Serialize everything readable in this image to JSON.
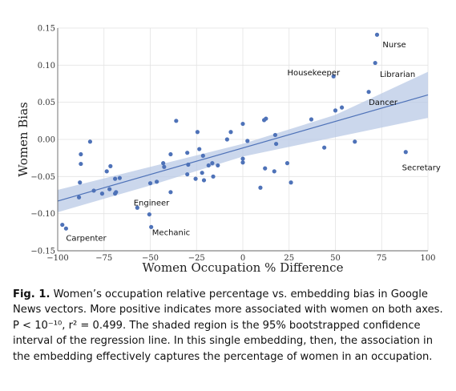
{
  "chart_data": {
    "type": "scatter",
    "xlabel": "Women Occupation % Difference",
    "ylabel": "Women Bias",
    "xlim": [
      -100,
      100
    ],
    "ylim": [
      -0.15,
      0.15
    ],
    "x_ticks": [
      -100,
      -75,
      -50,
      -25,
      0,
      25,
      50,
      75,
      100
    ],
    "x_tick_labels": [
      "−100",
      "−75",
      "−50",
      "−25",
      "0",
      "25",
      "50",
      "75",
      "100"
    ],
    "y_ticks": [
      -0.15,
      -0.1,
      -0.05,
      0.0,
      0.05,
      0.1,
      0.15
    ],
    "y_tick_labels": [
      "−0.15",
      "−0.10",
      "−0.05",
      "0.00",
      "0.05",
      "0.10",
      "0.15"
    ],
    "grid": true,
    "point_color": "#4e72b8",
    "band_color": "#b9c9e6",
    "line_color": "#4e72b8",
    "regression": {
      "x": [
        -100,
        100
      ],
      "y": [
        -0.083,
        0.06
      ]
    },
    "confidence_band": {
      "x": [
        -100,
        -50,
        0,
        50,
        100
      ],
      "upper": [
        -0.068,
        -0.037,
        -0.006,
        0.033,
        0.091
      ],
      "lower": [
        -0.098,
        -0.062,
        -0.023,
        0.003,
        0.029
      ]
    },
    "points": [
      {
        "x": 72.5,
        "y": 0.141
      },
      {
        "x": 71.5,
        "y": 0.103
      },
      {
        "x": 49.0,
        "y": 0.085
      },
      {
        "x": 68.0,
        "y": 0.064
      },
      {
        "x": 53.5,
        "y": 0.043
      },
      {
        "x": 50.0,
        "y": 0.039
      },
      {
        "x": 88.0,
        "y": -0.017
      },
      {
        "x": 60.5,
        "y": -0.003
      },
      {
        "x": 44.0,
        "y": -0.011
      },
      {
        "x": 37.0,
        "y": 0.027
      },
      {
        "x": 24.0,
        "y": -0.032
      },
      {
        "x": 26.0,
        "y": -0.058
      },
      {
        "x": 17.5,
        "y": 0.006
      },
      {
        "x": 18.0,
        "y": -0.006
      },
      {
        "x": 17.0,
        "y": -0.043
      },
      {
        "x": 11.5,
        "y": 0.026
      },
      {
        "x": 12.5,
        "y": 0.028
      },
      {
        "x": 12.0,
        "y": -0.039
      },
      {
        "x": 9.5,
        "y": -0.065
      },
      {
        "x": 2.5,
        "y": -0.002
      },
      {
        "x": 0.0,
        "y": 0.021
      },
      {
        "x": 0.0,
        "y": -0.026
      },
      {
        "x": 0.0,
        "y": -0.031
      },
      {
        "x": -6.5,
        "y": 0.01
      },
      {
        "x": -8.5,
        "y": 0.0
      },
      {
        "x": -13.5,
        "y": -0.035
      },
      {
        "x": -16.5,
        "y": -0.032
      },
      {
        "x": -16.0,
        "y": -0.05
      },
      {
        "x": -18.5,
        "y": -0.035
      },
      {
        "x": -21.5,
        "y": -0.022
      },
      {
        "x": -22.0,
        "y": -0.045
      },
      {
        "x": -21.0,
        "y": -0.055
      },
      {
        "x": -23.5,
        "y": -0.013
      },
      {
        "x": -24.5,
        "y": 0.01
      },
      {
        "x": -25.5,
        "y": -0.053
      },
      {
        "x": -29.5,
        "y": -0.034
      },
      {
        "x": -30.0,
        "y": -0.047
      },
      {
        "x": -30.0,
        "y": -0.018
      },
      {
        "x": -36.0,
        "y": 0.025
      },
      {
        "x": -39.0,
        "y": -0.02
      },
      {
        "x": -39.0,
        "y": -0.071
      },
      {
        "x": -42.5,
        "y": -0.037
      },
      {
        "x": -43.0,
        "y": -0.032
      },
      {
        "x": -46.5,
        "y": -0.057
      },
      {
        "x": -50.0,
        "y": -0.059
      },
      {
        "x": -50.5,
        "y": -0.101
      },
      {
        "x": -49.5,
        "y": -0.118
      },
      {
        "x": -57.0,
        "y": -0.092
      },
      {
        "x": -66.5,
        "y": -0.052
      },
      {
        "x": -69.0,
        "y": -0.053
      },
      {
        "x": -68.5,
        "y": -0.071
      },
      {
        "x": -69.0,
        "y": -0.073
      },
      {
        "x": -71.5,
        "y": -0.036
      },
      {
        "x": -73.5,
        "y": -0.043
      },
      {
        "x": -76.0,
        "y": -0.073
      },
      {
        "x": -72.0,
        "y": -0.067
      },
      {
        "x": -82.5,
        "y": -0.003
      },
      {
        "x": -87.5,
        "y": -0.02
      },
      {
        "x": -87.5,
        "y": -0.033
      },
      {
        "x": -88.0,
        "y": -0.058
      },
      {
        "x": -80.5,
        "y": -0.069
      },
      {
        "x": -88.5,
        "y": -0.078
      },
      {
        "x": -97.5,
        "y": -0.115
      },
      {
        "x": -95.5,
        "y": -0.12
      }
    ],
    "annotations": [
      {
        "text": "Nurse",
        "x": 75.5,
        "y": 0.128
      },
      {
        "text": "Librarian",
        "x": 74.0,
        "y": 0.088
      },
      {
        "text": "Housekeeper",
        "x": 24.0,
        "y": 0.09
      },
      {
        "text": "Dancer",
        "x": 68.0,
        "y": 0.05
      },
      {
        "text": "Secretary",
        "x": 86.0,
        "y": -0.038
      },
      {
        "text": "Engineer",
        "x": -59.0,
        "y": -0.085
      },
      {
        "text": "Mechanic",
        "x": -49.0,
        "y": -0.125
      },
      {
        "text": "Carpenter",
        "x": -95.5,
        "y": -0.133
      }
    ]
  },
  "caption": {
    "label": "Fig. 1.",
    "text": "Women’s occupation relative percentage vs. embedding bias in Google News vectors. More positive indicates more associated with women on both axes. P < 10⁻¹⁰, r² = 0.499. The shaded region is the 95% bootstrapped confidence interval of the regression line. In this single embedding, then, the association in the embedding effectively captures the percentage of women in an occupation."
  }
}
